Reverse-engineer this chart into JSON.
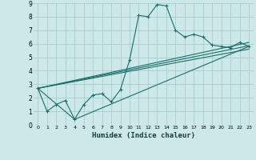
{
  "background_color": "#cce8e8",
  "grid_color": "#aacccc",
  "line_color": "#1a6e6a",
  "xlabel": "Humidex (Indice chaleur)",
  "xlim": [
    -0.5,
    23.5
  ],
  "ylim": [
    0,
    9
  ],
  "xticks": [
    0,
    1,
    2,
    3,
    4,
    5,
    6,
    7,
    8,
    9,
    10,
    11,
    12,
    13,
    14,
    15,
    16,
    17,
    18,
    19,
    20,
    21,
    22,
    23
  ],
  "yticks": [
    0,
    1,
    2,
    3,
    4,
    5,
    6,
    7,
    8,
    9
  ],
  "series": [
    {
      "x": [
        0,
        1,
        2,
        3,
        4,
        5,
        6,
        7,
        8,
        9,
        10,
        11,
        12,
        13,
        14,
        15,
        16,
        17,
        18,
        19,
        20,
        21,
        22,
        23
      ],
      "y": [
        2.7,
        1.0,
        1.5,
        1.8,
        0.4,
        1.5,
        2.2,
        2.3,
        1.7,
        2.6,
        4.8,
        8.1,
        8.0,
        8.9,
        8.8,
        7.0,
        6.5,
        6.7,
        6.5,
        5.9,
        5.8,
        5.7,
        6.1,
        5.8
      ],
      "marker": true
    },
    {
      "x": [
        0,
        4,
        23
      ],
      "y": [
        2.7,
        0.4,
        5.8
      ],
      "marker": false
    },
    {
      "x": [
        0,
        23
      ],
      "y": [
        2.7,
        6.1
      ],
      "marker": false
    },
    {
      "x": [
        0,
        23
      ],
      "y": [
        2.7,
        5.85
      ],
      "marker": false
    },
    {
      "x": [
        0,
        23
      ],
      "y": [
        2.7,
        5.6
      ],
      "marker": false
    }
  ]
}
